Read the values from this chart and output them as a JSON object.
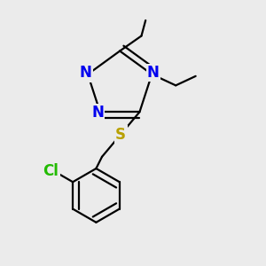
{
  "bg_color": "#ebebeb",
  "atom_colors": {
    "N": "#0000ee",
    "S": "#b8a000",
    "Cl": "#22bb00",
    "C": "#000000"
  },
  "bond_color": "#000000",
  "bond_width": 1.6,
  "font_size_atoms": 12
}
